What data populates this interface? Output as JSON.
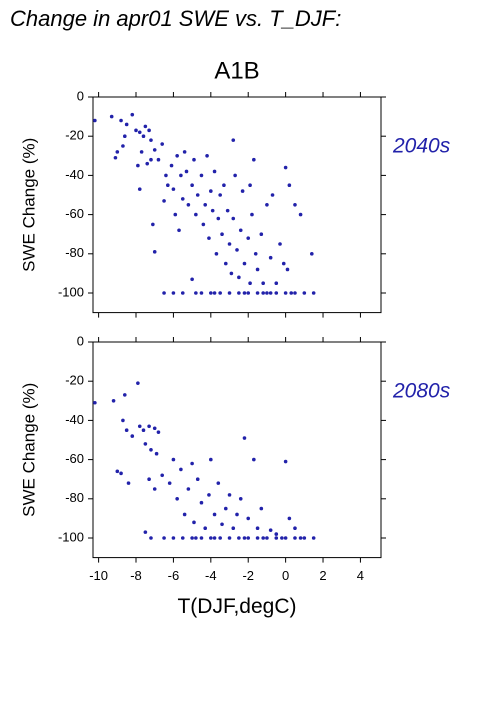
{
  "header": {
    "title": "Change in apr01 SWE vs. T_DJF:",
    "subtitle": "A1B"
  },
  "chart_data": [
    {
      "type": "scatter",
      "title": "2040s",
      "ylabel": "SWE Change (%)",
      "color": "#2222aa",
      "xlim": [
        -10.3,
        5.1
      ],
      "ylim": [
        -110,
        0
      ],
      "xticks": [
        -10,
        -8,
        -6,
        -4,
        -2,
        0,
        2,
        4
      ],
      "yticks": [
        0,
        -20,
        -40,
        -60,
        -80,
        -100
      ],
      "xtick_labels": false,
      "x": [
        -10.2,
        -9.3,
        -8.8,
        -8.2,
        -8.5,
        -8.6,
        -9,
        -9.1,
        -8.7,
        -8,
        -7.8,
        -7.5,
        -7.6,
        -7.3,
        -7.2,
        -7.9,
        -7.7,
        -7.4,
        -7.8,
        -7.2,
        -7,
        -6.8,
        -6.6,
        -6.4,
        -6.3,
        -7.1,
        -7,
        -6.5,
        -6.1,
        -6,
        -5.8,
        -5.6,
        -5.5,
        -5.3,
        -5.9,
        -5.7,
        -5.2,
        -5.4,
        -5,
        -4.9,
        -4.8,
        -4.7,
        -4.5,
        -4.4,
        -4.3,
        -4.2,
        -4.1,
        -4,
        -3.9,
        -3.8,
        -3.7,
        -3.6,
        -3.5,
        -3.4,
        -3.3,
        -3.2,
        -3.1,
        -3,
        -2.9,
        -2.8,
        -2.7,
        -2.6,
        -2.5,
        -2.4,
        -2.3,
        -2.2,
        -2,
        -1.9,
        -1.8,
        -1.7,
        -1.6,
        -1.5,
        -1.3,
        -1.2,
        -1,
        -0.8,
        -0.7,
        -0.5,
        -0.3,
        -0.1,
        0.1,
        0,
        0.2,
        0.5,
        0.8,
        1.4,
        1.5,
        -2.8,
        -1.9,
        -6,
        -5.5,
        -5,
        -4.5,
        -4,
        -3.5,
        -3,
        -2.5,
        -2,
        -1.5,
        -1,
        -0.5,
        0,
        0.5,
        1,
        -6.5,
        -3.8,
        -2.2,
        -0.8,
        0.3,
        -4.8,
        -1.2
      ],
      "y": [
        -12,
        -10,
        -12,
        -9,
        -14,
        -20,
        -28,
        -31,
        -25,
        -17,
        -18,
        -15,
        -20,
        -17,
        -22,
        -35,
        -28,
        -34,
        -47,
        -32,
        -27,
        -32,
        -24,
        -40,
        -45,
        -65,
        -79,
        -53,
        -35,
        -47,
        -30,
        -40,
        -52,
        -38,
        -60,
        -68,
        -55,
        -28,
        -45,
        -32,
        -60,
        -50,
        -40,
        -65,
        -55,
        -30,
        -72,
        -48,
        -58,
        -38,
        -80,
        -62,
        -50,
        -70,
        -45,
        -85,
        -58,
        -75,
        -90,
        -62,
        -40,
        -78,
        -92,
        -68,
        -48,
        -85,
        -72,
        -95,
        -60,
        -32,
        -80,
        -88,
        -70,
        -95,
        -55,
        -82,
        -50,
        -95,
        -75,
        -85,
        -88,
        -36,
        -45,
        -55,
        -60,
        -80,
        -100,
        -22,
        -45,
        -100,
        -100,
        -93,
        -100,
        -100,
        -100,
        -100,
        -100,
        -100,
        -100,
        -100,
        -100,
        -100,
        -100,
        -100,
        -100,
        -100,
        -100,
        -100,
        -100,
        -100,
        -100
      ]
    },
    {
      "type": "scatter",
      "title": "2080s",
      "ylabel": "SWE Change (%)",
      "xlabel": "T(DJF,degC)",
      "color": "#2222aa",
      "xlim": [
        -10.3,
        5.1
      ],
      "ylim": [
        -110,
        0
      ],
      "xticks": [
        -10,
        -8,
        -6,
        -4,
        -2,
        0,
        2,
        4
      ],
      "yticks": [
        0,
        -20,
        -40,
        -60,
        -80,
        -100
      ],
      "xtick_labels": true,
      "x": [
        -10.2,
        -9.2,
        -8.6,
        -7.9,
        -8.7,
        -8.5,
        -8.2,
        -7.8,
        -7.6,
        -7.3,
        -7,
        -6.8,
        -9,
        -8.8,
        -8.4,
        -7.5,
        -7.2,
        -6.9,
        -7.3,
        -7,
        -6.6,
        -6.2,
        -6,
        -5.8,
        -5.6,
        -5.4,
        -5.2,
        -5,
        -4.9,
        -4.7,
        -4.5,
        -4.3,
        -4.1,
        -4,
        -3.8,
        -3.6,
        -3.4,
        -3.2,
        -3,
        -2.8,
        -2.6,
        -2.4,
        -2.2,
        -2,
        -1.7,
        -1.5,
        -1.3,
        -0.8,
        -0.5,
        0,
        0.2,
        0.5,
        -7.5,
        -7.2,
        -6,
        -5.5,
        -5,
        -4.5,
        -4,
        -3.5,
        -3,
        -2.5,
        -2,
        -1.5,
        -1,
        -0.5,
        0,
        0.5,
        1,
        1.5,
        -6.5,
        -3.8,
        -2.2,
        -0.2,
        0.8,
        -4.8,
        -1.2
      ],
      "y": [
        -31,
        -30,
        -27,
        -21,
        -40,
        -45,
        -48,
        -43,
        -45,
        -43,
        -44,
        -46,
        -66,
        -67,
        -72,
        -52,
        -55,
        -57,
        -70,
        -75,
        -68,
        -72,
        -60,
        -80,
        -65,
        -88,
        -75,
        -62,
        -92,
        -70,
        -82,
        -95,
        -78,
        -60,
        -88,
        -72,
        -93,
        -85,
        -78,
        -95,
        -88,
        -80,
        -49,
        -90,
        -60,
        -95,
        -85,
        -96,
        -98,
        -61,
        -90,
        -95,
        -97,
        -100,
        -100,
        -100,
        -100,
        -100,
        -100,
        -100,
        -100,
        -100,
        -100,
        -100,
        -100,
        -100,
        -100,
        -100,
        -100,
        -100,
        -100,
        -100,
        -100,
        -100,
        -100,
        -100,
        -100
      ]
    }
  ]
}
